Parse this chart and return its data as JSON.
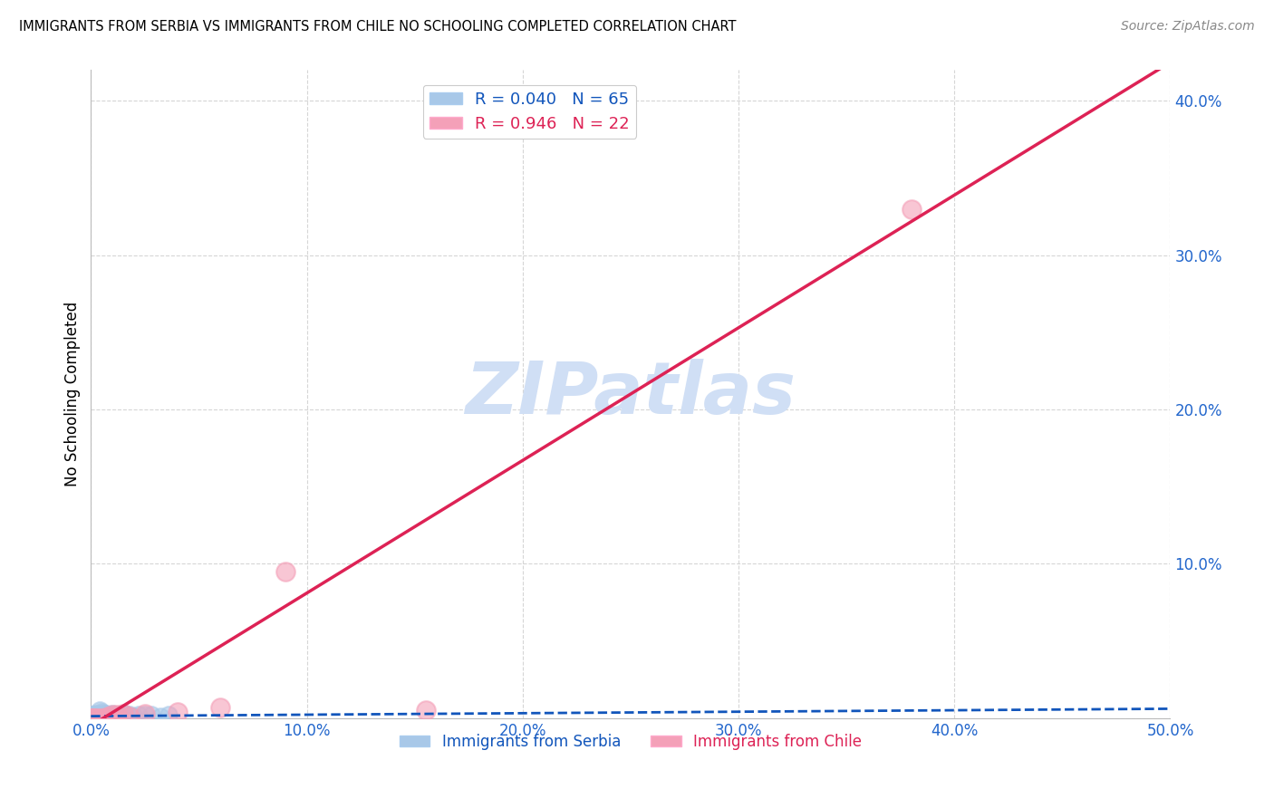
{
  "title": "IMMIGRANTS FROM SERBIA VS IMMIGRANTS FROM CHILE NO SCHOOLING COMPLETED CORRELATION CHART",
  "source": "Source: ZipAtlas.com",
  "ylabel": "No Schooling Completed",
  "xlabel": "",
  "xlim": [
    0,
    0.5
  ],
  "ylim": [
    0,
    0.42
  ],
  "xticks": [
    0.0,
    0.1,
    0.2,
    0.3,
    0.4,
    0.5
  ],
  "xtick_labels": [
    "0.0%",
    "10.0%",
    "20.0%",
    "30.0%",
    "40.0%",
    "50.0%"
  ],
  "yticks": [
    0.0,
    0.1,
    0.2,
    0.3,
    0.4
  ],
  "ytick_labels": [
    "",
    "10.0%",
    "20.0%",
    "30.0%",
    "40.0%"
  ],
  "serbia_R": 0.04,
  "serbia_N": 65,
  "chile_R": 0.946,
  "chile_N": 22,
  "serbia_color": "#a8c8e8",
  "chile_color": "#f4a0b8",
  "serbia_line_color": "#1155bb",
  "chile_line_color": "#dd2255",
  "watermark_color": "#d0dff5",
  "legend_serbia_label": "Immigrants from Serbia",
  "legend_chile_label": "Immigrants from Chile",
  "serbia_x": [
    0.0,
    0.0,
    0.0,
    0.0,
    0.0,
    0.0,
    0.0,
    0.0,
    0.0,
    0.0,
    0.0,
    0.0,
    0.0,
    0.0,
    0.0,
    0.0,
    0.0,
    0.0,
    0.0,
    0.0,
    0.0,
    0.0,
    0.0,
    0.0,
    0.0,
    0.0,
    0.0,
    0.001,
    0.001,
    0.001,
    0.001,
    0.001,
    0.002,
    0.002,
    0.002,
    0.002,
    0.002,
    0.003,
    0.003,
    0.003,
    0.004,
    0.004,
    0.004,
    0.005,
    0.005,
    0.005,
    0.006,
    0.006,
    0.007,
    0.007,
    0.008,
    0.009,
    0.01,
    0.01,
    0.011,
    0.012,
    0.014,
    0.016,
    0.018,
    0.02,
    0.022,
    0.025,
    0.028,
    0.032,
    0.036
  ],
  "serbia_y": [
    0.0,
    0.0,
    0.0,
    0.0,
    0.0,
    0.0,
    0.0,
    0.0,
    0.0,
    0.0,
    0.0,
    0.0,
    0.0,
    0.0,
    0.0,
    0.0,
    0.0,
    0.0,
    0.0,
    0.0,
    0.0,
    0.0,
    0.0,
    0.0,
    0.0,
    0.0,
    0.0,
    0.0,
    0.001,
    0.001,
    0.002,
    0.002,
    0.0,
    0.0,
    0.0,
    0.001,
    0.003,
    0.0,
    0.001,
    0.002,
    0.002,
    0.003,
    0.005,
    0.001,
    0.002,
    0.004,
    0.001,
    0.003,
    0.001,
    0.003,
    0.002,
    0.002,
    0.001,
    0.003,
    0.002,
    0.002,
    0.002,
    0.003,
    0.002,
    0.001,
    0.002,
    0.002,
    0.002,
    0.001,
    0.002
  ],
  "chile_x": [
    0.0,
    0.0,
    0.0,
    0.0,
    0.001,
    0.001,
    0.002,
    0.003,
    0.004,
    0.005,
    0.006,
    0.008,
    0.01,
    0.012,
    0.015,
    0.018,
    0.025,
    0.04,
    0.06,
    0.09,
    0.155,
    0.38
  ],
  "chile_y": [
    0.0,
    0.0,
    0.0,
    0.0,
    0.0,
    0.0,
    0.0,
    0.0,
    0.0,
    0.0,
    0.0,
    0.001,
    0.002,
    0.002,
    0.003,
    0.001,
    0.003,
    0.004,
    0.007,
    0.095,
    0.005,
    0.33
  ],
  "chile_line_x0": 0.0,
  "chile_line_y0": -0.005,
  "chile_line_x1": 0.5,
  "chile_line_y1": 0.425,
  "serbia_line_x0": 0.0,
  "serbia_line_y0": 0.0012,
  "serbia_line_x1": 0.5,
  "serbia_line_y1": 0.006
}
